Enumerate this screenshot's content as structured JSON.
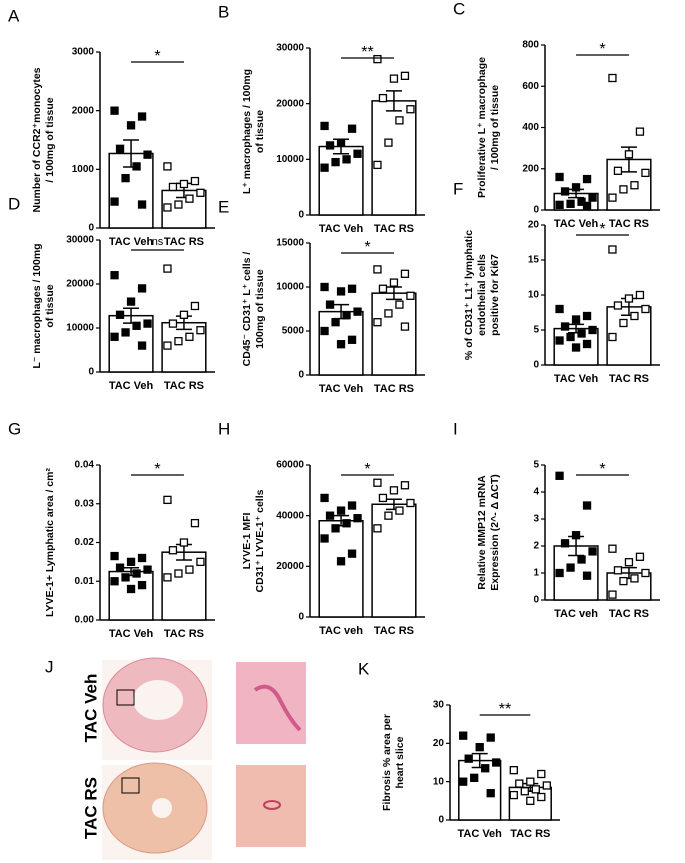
{
  "chart_data": [
    {
      "type": "bar",
      "panel": "A",
      "ylabel": [
        "Number of CCR2⁺monocytes",
        "/ 100mg of tissue"
      ],
      "categories": [
        "TAC Veh",
        "TAC RS"
      ],
      "values": [
        1270,
        640
      ],
      "errors": [
        230,
        120
      ],
      "points": [
        [
          2000,
          1900,
          1750,
          1350,
          1250,
          1050,
          850,
          450,
          400
        ],
        [
          1050,
          800,
          750,
          700,
          600,
          500,
          400,
          350
        ]
      ],
      "ylim": [
        0,
        3000
      ],
      "yticks": [
        0,
        1000,
        2000,
        3000
      ],
      "significance": "*",
      "color": "#000000"
    },
    {
      "type": "bar",
      "panel": "B",
      "ylabel": [
        "L⁺ macrophages / 100mg",
        "of tissue"
      ],
      "categories": [
        "TAC Veh",
        "TAC RS"
      ],
      "values": [
        12300,
        20500
      ],
      "errors": [
        1300,
        1800
      ],
      "points": [
        [
          16000,
          15500,
          13000,
          12500,
          11000,
          10000,
          9500,
          8500
        ],
        [
          28000,
          25000,
          24500,
          21000,
          19000,
          17000,
          13000,
          9000
        ]
      ],
      "ylim": [
        0,
        30000
      ],
      "yticks": [
        0,
        10000,
        20000,
        30000
      ],
      "significance": "**",
      "color": "#000000"
    },
    {
      "type": "bar",
      "panel": "C",
      "ylabel": [
        "Proliferative  L⁺ macrophage",
        "/ 100mg of tissue"
      ],
      "categories": [
        "TAC Veh",
        "TAC RS"
      ],
      "values": [
        80,
        245
      ],
      "errors": [
        20,
        60
      ],
      "points": [
        [
          160,
          150,
          110,
          90,
          60,
          40,
          30,
          25,
          20
        ],
        [
          640,
          380,
          270,
          190,
          180,
          120,
          100,
          60
        ]
      ],
      "ylim": [
        0,
        800
      ],
      "yticks": [
        0,
        200,
        400,
        600,
        800
      ],
      "significance": "*",
      "color": "#000000"
    },
    {
      "type": "bar",
      "panel": "D",
      "ylabel": [
        "L⁻ macrophages / 100mg",
        "of tissue"
      ],
      "categories": [
        "TAC Veh",
        "TAC RS"
      ],
      "values": [
        12800,
        11200
      ],
      "errors": [
        1700,
        1500
      ],
      "points": [
        [
          22000,
          19000,
          16000,
          13000,
          11000,
          10500,
          9000,
          8000,
          6000
        ],
        [
          23500,
          15000,
          13000,
          11000,
          9500,
          8000,
          7000,
          6000
        ]
      ],
      "ylim": [
        0,
        30000
      ],
      "yticks": [
        0,
        10000,
        20000,
        30000
      ],
      "significance": "ns",
      "color": "#000000"
    },
    {
      "type": "bar",
      "panel": "E",
      "ylabel": [
        "CD45⁻ CD31⁺ L⁺ cells /",
        "100mg of tissue"
      ],
      "categories": [
        "TAC Veh",
        "TAC RS"
      ],
      "values": [
        7200,
        9300
      ],
      "errors": [
        800,
        700
      ],
      "points": [
        [
          10000,
          9800,
          9500,
          8000,
          7200,
          6800,
          6000,
          5000,
          4000,
          3500
        ],
        [
          12000,
          11500,
          10500,
          9800,
          9000,
          8000,
          7000,
          6000,
          5500
        ]
      ],
      "ylim": [
        0,
        15000
      ],
      "yticks": [
        0,
        5000,
        10000,
        15000
      ],
      "significance": "*",
      "color": "#000000"
    },
    {
      "type": "bar",
      "panel": "F",
      "ylabel": [
        "% of CD31⁺ L1⁺ lymphatic",
        "endothelial cells",
        "positive for Ki67"
      ],
      "categories": [
        "TAC Veh",
        "TAC RS"
      ],
      "values": [
        5.2,
        8.3
      ],
      "errors": [
        0.6,
        1.2
      ],
      "points": [
        [
          8,
          7,
          6.5,
          5.5,
          5,
          4.5,
          4,
          3.5,
          3,
          2.5
        ],
        [
          16.5,
          10,
          9.5,
          8.5,
          8,
          7,
          6,
          4
        ]
      ],
      "ylim": [
        0,
        20
      ],
      "yticks": [
        0,
        5,
        10,
        15,
        20
      ],
      "significance": "*",
      "color": "#000000"
    },
    {
      "type": "bar",
      "panel": "G",
      "ylabel": [
        "LYVE-1+ Lymphatic area / cm²"
      ],
      "categories": [
        "TAC Veh",
        "TAC RS"
      ],
      "values": [
        0.0125,
        0.0175
      ],
      "errors": [
        0.001,
        0.002
      ],
      "points": [
        [
          0.0165,
          0.016,
          0.015,
          0.0135,
          0.013,
          0.012,
          0.011,
          0.01,
          0.009,
          0.008
        ],
        [
          0.031,
          0.025,
          0.02,
          0.018,
          0.015,
          0.013,
          0.012,
          0.011
        ]
      ],
      "ylim": [
        0,
        0.04
      ],
      "yticks": [
        {
          "value": 0,
          "label": "0.00"
        },
        0.01,
        0.02,
        0.03,
        0.04
      ],
      "significance": "*",
      "color": "#000000"
    },
    {
      "type": "bar",
      "panel": "H",
      "ylabel": [
        "LYVE-1 MFI",
        "CD31⁺ LYVE-1⁺ cells"
      ],
      "categories": [
        "TAC veh",
        "TAC RS"
      ],
      "values": [
        38000,
        44500
      ],
      "errors": [
        2000,
        2000
      ],
      "points": [
        [
          47000,
          44000,
          42000,
          40000,
          39000,
          37000,
          35000,
          31000,
          25000,
          22000
        ],
        [
          53000,
          52000,
          50000,
          47000,
          45000,
          42000,
          40000,
          35000
        ]
      ],
      "ylim": [
        0,
        60000
      ],
      "yticks": [
        0,
        20000,
        40000,
        60000
      ],
      "significance": "*",
      "color": "#000000"
    },
    {
      "type": "bar",
      "panel": "I",
      "ylabel": [
        "Relative MMP12  mRNA",
        "Expression (2^- Δ ΔCT)"
      ],
      "categories": [
        "TAC veh",
        "TAC RS"
      ],
      "values": [
        2.0,
        1.0
      ],
      "errors": [
        0.35,
        0.2
      ],
      "points": [
        [
          4.6,
          3.5,
          2.4,
          2.1,
          1.8,
          1.5,
          1.2,
          1.0,
          0.9
        ],
        [
          1.9,
          1.6,
          1.4,
          1.1,
          1.0,
          0.8,
          0.7,
          0.2
        ]
      ],
      "ylim": [
        0,
        5
      ],
      "yticks": [
        0,
        1,
        2,
        3,
        4,
        5
      ],
      "significance": "*",
      "color": "#000000"
    },
    {
      "type": "bar",
      "panel": "K",
      "ylabel": [
        "Fibrosis % area per",
        "heart slice"
      ],
      "categories": [
        "TAC Veh",
        "TAC RS"
      ],
      "values": [
        15.5,
        8.5
      ],
      "errors": [
        1.8,
        1.0
      ],
      "points": [
        [
          22,
          21.5,
          19,
          16,
          15,
          13.5,
          11,
          10,
          7
        ],
        [
          13,
          12,
          10,
          9.5,
          9,
          8,
          7.5,
          6.5,
          6,
          5
        ]
      ],
      "ylim": [
        0,
        30
      ],
      "yticks": [
        0,
        10,
        20,
        30
      ],
      "significance": "**",
      "color": "#000000"
    }
  ],
  "panel_j": {
    "label": "J",
    "rows": [
      "TAC Veh",
      "TAC RS"
    ]
  }
}
